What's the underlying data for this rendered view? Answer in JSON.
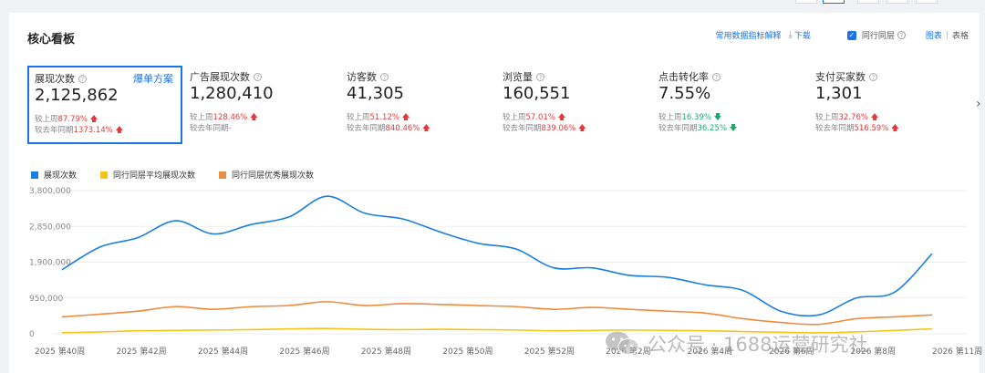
{
  "header": {
    "title": "核心看板",
    "common_metrics_link": "常用数据指标解释",
    "download": "下载",
    "peer_layer": "同行同层",
    "view_chart": "图表",
    "view_table": "表格",
    "view_sep": "|"
  },
  "kpis": [
    {
      "name": "展现次数",
      "value": "2,125,862",
      "extra": "爆单方案",
      "cmp1_label": "较上周",
      "cmp1_value": "87.79%",
      "cmp1_dir": "up",
      "cmp2_label": "较去年同期",
      "cmp2_value": "1373.14%",
      "cmp2_dir": "up",
      "selected": true
    },
    {
      "name": "广告展现次数",
      "value": "1,280,410",
      "cmp1_label": "较上周",
      "cmp1_value": "128.46%",
      "cmp1_dir": "up",
      "cmp2_label": "较去年同期",
      "cmp2_value": "-",
      "cmp2_dir": "none"
    },
    {
      "name": "访客数",
      "value": "41,305",
      "cmp1_label": "较上周",
      "cmp1_value": "51.12%",
      "cmp1_dir": "up",
      "cmp2_label": "较去年同期",
      "cmp2_value": "840.46%",
      "cmp2_dir": "up"
    },
    {
      "name": "浏览量",
      "value": "160,551",
      "cmp1_label": "较上周",
      "cmp1_value": "57.01%",
      "cmp1_dir": "up",
      "cmp2_label": "较去年同期",
      "cmp2_value": "839.06%",
      "cmp2_dir": "up"
    },
    {
      "name": "点击转化率",
      "value": "7.55%",
      "cmp1_label": "较上周",
      "cmp1_value": "16.39%",
      "cmp1_dir": "down",
      "cmp2_label": "较去年同期",
      "cmp2_value": "36.25%",
      "cmp2_dir": "down"
    },
    {
      "name": "支付买家数",
      "value": "1,301",
      "cmp1_label": "较上周",
      "cmp1_value": "32.76%",
      "cmp1_dir": "up",
      "cmp2_label": "较去年同期",
      "cmp2_value": "516.59%",
      "cmp2_dir": "up"
    }
  ],
  "next_arrow": "›",
  "watermark": "公众号 · 1688运营研究社",
  "colors": {
    "accent": "#1a73e8",
    "up": "#e4393c",
    "down": "#1aaa6e"
  },
  "chart_data": {
    "type": "line",
    "legend_position": "top-left",
    "grid": true,
    "ylim": [
      0,
      3800000
    ],
    "yticks": [
      "3,800,000",
      "2,850,000",
      "1,900,000",
      "950,000",
      "0"
    ],
    "ytick_values": [
      3800000,
      2850000,
      1900000,
      950000,
      0
    ],
    "xticks": [
      "2025 第40周",
      "2025 第42周",
      "2025 第44周",
      "2025 第46周",
      "2025 第48周",
      "2025 第50周",
      "2025 第52周",
      "2026 第2周",
      "2026 第4周",
      "2026 第6周",
      "2026 第8周",
      "2026 第11周"
    ],
    "series": [
      {
        "name": "展现次数",
        "color": "#1a7fe0",
        "values": [
          1700000,
          2300000,
          2550000,
          3000000,
          2650000,
          2900000,
          3100000,
          3650000,
          3200000,
          3050000,
          2700000,
          2400000,
          2250000,
          1750000,
          1750000,
          1550000,
          1500000,
          1300000,
          1150000,
          600000,
          500000,
          950000,
          1100000,
          2125862
        ]
      },
      {
        "name": "同行同层平均展现次数",
        "color": "#f5c518",
        "values": [
          30000,
          50000,
          80000,
          90000,
          100000,
          110000,
          130000,
          140000,
          120000,
          110000,
          120000,
          110000,
          100000,
          80000,
          90000,
          100000,
          90000,
          80000,
          60000,
          40000,
          30000,
          50000,
          90000,
          130000
        ]
      },
      {
        "name": "同行同层优秀展现次数",
        "color": "#f08a3c",
        "values": [
          450000,
          520000,
          600000,
          720000,
          650000,
          720000,
          750000,
          850000,
          750000,
          800000,
          780000,
          750000,
          720000,
          650000,
          700000,
          650000,
          600000,
          550000,
          400000,
          300000,
          250000,
          400000,
          450000,
          500000
        ]
      }
    ]
  }
}
